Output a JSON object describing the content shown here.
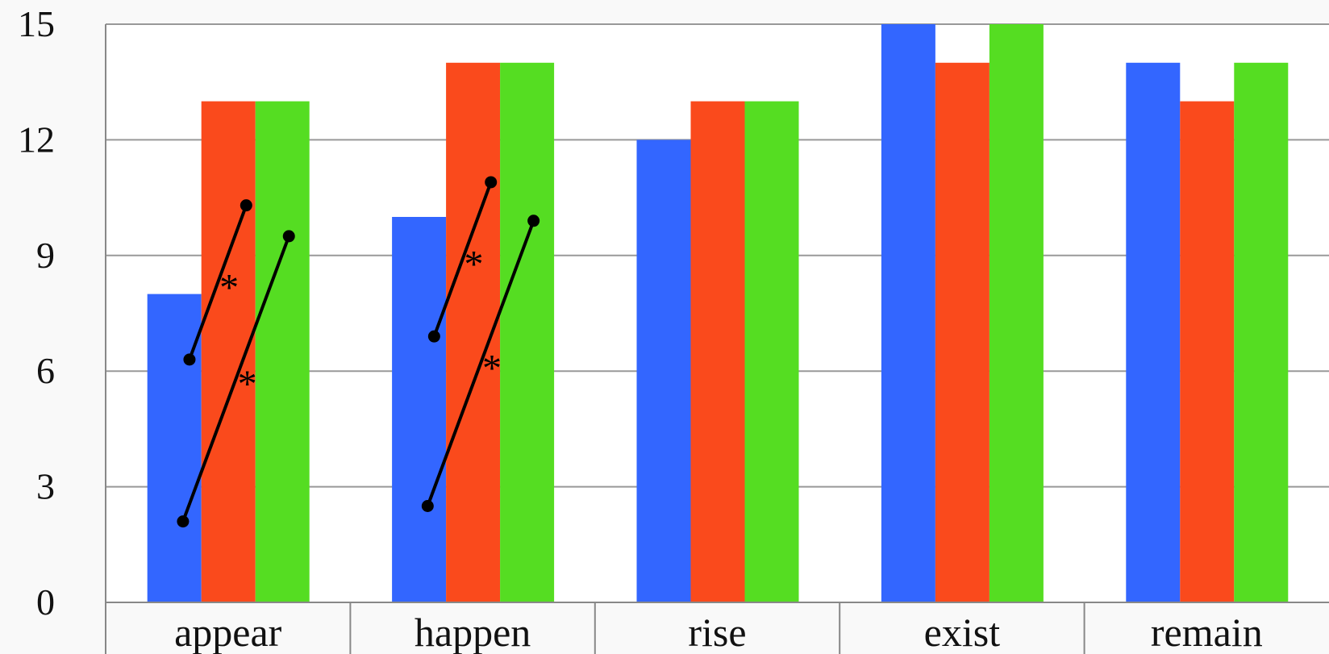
{
  "chart_data": {
    "type": "bar",
    "title": "",
    "xlabel": "",
    "ylabel": "",
    "ylim": [
      0,
      15
    ],
    "yticks": [
      0,
      3,
      6,
      9,
      12,
      15
    ],
    "grid": true,
    "legend": "none",
    "categories": [
      "appear",
      "happen",
      "rise",
      "exist",
      "remain"
    ],
    "series": [
      {
        "color": "#3366ff",
        "values": [
          8,
          10,
          12,
          15,
          14
        ]
      },
      {
        "color": "#fa4a1c",
        "values": [
          13,
          14,
          13,
          14,
          13
        ]
      },
      {
        "color": "#55dd22",
        "values": [
          13,
          14,
          13,
          15,
          14
        ]
      }
    ],
    "annotations": [
      {
        "category": "appear",
        "from_series": 0,
        "to_series": 1,
        "y1": 6.3,
        "y2": 10.3,
        "label": "*"
      },
      {
        "category": "appear",
        "from_series": 0,
        "to_series": 2,
        "y1": 2.1,
        "y2": 9.5,
        "label": "*"
      },
      {
        "category": "happen",
        "from_series": 0,
        "to_series": 1,
        "y1": 6.9,
        "y2": 10.9,
        "label": "*"
      },
      {
        "category": "happen",
        "from_series": 0,
        "to_series": 2,
        "y1": 2.5,
        "y2": 9.9,
        "label": "*"
      }
    ]
  }
}
